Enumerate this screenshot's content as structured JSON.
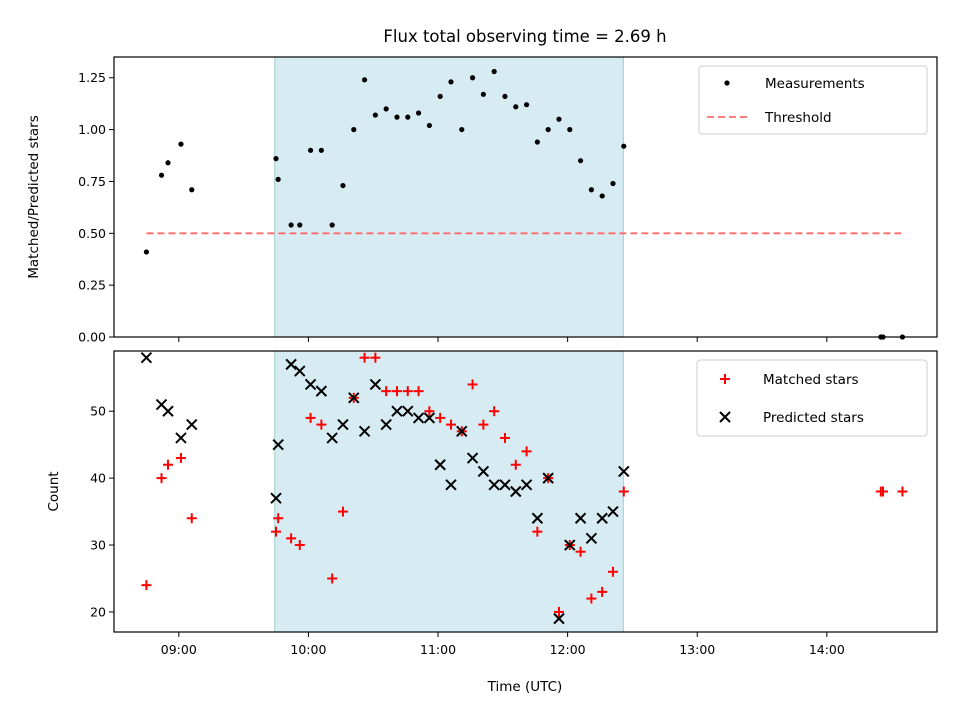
{
  "chart_data": {
    "title": "Flux total observing time = 2.69 h",
    "xlabel": "Time (UTC)",
    "x_tick_labels": [
      "09:00",
      "10:00",
      "11:00",
      "12:00",
      "13:00",
      "14:00"
    ],
    "x_tick_hours": [
      9,
      10,
      11,
      12,
      13,
      14
    ],
    "xlim_hours": [
      8.5,
      14.85
    ],
    "shaded_interval_hours": [
      9.74,
      12.43
    ],
    "shade_color": "#add8e6",
    "panels": [
      {
        "type": "scatter",
        "ylabel": "Matched/Predicted stars",
        "ylim": [
          0,
          1.35
        ],
        "yticks": [
          "0.00",
          "0.25",
          "0.50",
          "0.75",
          "1.00",
          "1.25"
        ],
        "legend_position": "upper right",
        "series": [
          {
            "name": "Measurements",
            "marker": "dot",
            "color": "#000000",
            "points": [
              [
                "08:45",
                0.41
              ],
              [
                "08:52",
                0.78
              ],
              [
                "08:55",
                0.84
              ],
              [
                "09:01",
                0.93
              ],
              [
                "09:06",
                0.71
              ],
              [
                "09:45",
                0.86
              ],
              [
                "09:46",
                0.76
              ],
              [
                "09:52",
                0.54
              ],
              [
                "09:56",
                0.54
              ],
              [
                "10:01",
                0.9
              ],
              [
                "10:06",
                0.9
              ],
              [
                "10:11",
                0.54
              ],
              [
                "10:16",
                0.73
              ],
              [
                "10:21",
                1.0
              ],
              [
                "10:26",
                1.24
              ],
              [
                "10:31",
                1.07
              ],
              [
                "10:36",
                1.1
              ],
              [
                "10:41",
                1.06
              ],
              [
                "10:46",
                1.06
              ],
              [
                "10:51",
                1.08
              ],
              [
                "10:56",
                1.02
              ],
              [
                "11:01",
                1.16
              ],
              [
                "11:06",
                1.23
              ],
              [
                "11:11",
                1.0
              ],
              [
                "11:16",
                1.25
              ],
              [
                "11:21",
                1.17
              ],
              [
                "11:26",
                1.28
              ],
              [
                "11:31",
                1.16
              ],
              [
                "11:36",
                1.11
              ],
              [
                "11:41",
                1.12
              ],
              [
                "11:46",
                0.94
              ],
              [
                "11:51",
                1.0
              ],
              [
                "11:56",
                1.05
              ],
              [
                "12:01",
                1.0
              ],
              [
                "12:06",
                0.85
              ],
              [
                "12:11",
                0.71
              ],
              [
                "12:16",
                0.68
              ],
              [
                "12:21",
                0.74
              ],
              [
                "12:26",
                0.92
              ],
              [
                "14:25",
                0.0
              ],
              [
                "14:26",
                0.0
              ],
              [
                "14:35",
                0.0
              ]
            ]
          },
          {
            "name": "Threshold",
            "style": "dashed-line",
            "color": "#ff6b6b",
            "points": [
              [
                "08:45",
                0.5
              ],
              [
                "14:35",
                0.5
              ]
            ]
          }
        ]
      },
      {
        "type": "scatter",
        "ylabel": "Count",
        "ylim": [
          17,
          59
        ],
        "yticks": [
          "20",
          "30",
          "40",
          "50"
        ],
        "legend_position": "upper right",
        "series": [
          {
            "name": "Matched stars",
            "marker": "plus",
            "color": "#ff0000",
            "points": [
              [
                "08:45",
                24
              ],
              [
                "08:52",
                40
              ],
              [
                "08:55",
                42
              ],
              [
                "09:01",
                43
              ],
              [
                "09:06",
                34
              ],
              [
                "09:45",
                32
              ],
              [
                "09:46",
                34
              ],
              [
                "09:52",
                31
              ],
              [
                "09:56",
                30
              ],
              [
                "10:01",
                49
              ],
              [
                "10:06",
                48
              ],
              [
                "10:11",
                25
              ],
              [
                "10:16",
                35
              ],
              [
                "10:21",
                52
              ],
              [
                "10:26",
                58
              ],
              [
                "10:31",
                58
              ],
              [
                "10:36",
                53
              ],
              [
                "10:41",
                53
              ],
              [
                "10:46",
                53
              ],
              [
                "10:51",
                53
              ],
              [
                "10:56",
                50
              ],
              [
                "11:01",
                49
              ],
              [
                "11:06",
                48
              ],
              [
                "11:11",
                47
              ],
              [
                "11:16",
                54
              ],
              [
                "11:21",
                48
              ],
              [
                "11:26",
                50
              ],
              [
                "11:31",
                46
              ],
              [
                "11:36",
                42
              ],
              [
                "11:41",
                44
              ],
              [
                "11:46",
                32
              ],
              [
                "11:51",
                40
              ],
              [
                "11:56",
                20
              ],
              [
                "12:01",
                30
              ],
              [
                "12:06",
                29
              ],
              [
                "12:11",
                22
              ],
              [
                "12:16",
                23
              ],
              [
                "12:21",
                26
              ],
              [
                "12:26",
                38
              ],
              [
                "14:25",
                38
              ],
              [
                "14:26",
                38
              ],
              [
                "14:35",
                38
              ]
            ]
          },
          {
            "name": "Predicted stars",
            "marker": "x",
            "color": "#000000",
            "points": [
              [
                "08:45",
                58
              ],
              [
                "08:52",
                51
              ],
              [
                "08:55",
                50
              ],
              [
                "09:01",
                46
              ],
              [
                "09:06",
                48
              ],
              [
                "09:45",
                37
              ],
              [
                "09:46",
                45
              ],
              [
                "09:52",
                57
              ],
              [
                "09:56",
                56
              ],
              [
                "10:01",
                54
              ],
              [
                "10:06",
                53
              ],
              [
                "10:11",
                46
              ],
              [
                "10:16",
                48
              ],
              [
                "10:21",
                52
              ],
              [
                "10:26",
                47
              ],
              [
                "10:31",
                54
              ],
              [
                "10:36",
                48
              ],
              [
                "10:41",
                50
              ],
              [
                "10:46",
                50
              ],
              [
                "10:51",
                49
              ],
              [
                "10:56",
                49
              ],
              [
                "11:01",
                42
              ],
              [
                "11:06",
                39
              ],
              [
                "11:11",
                47
              ],
              [
                "11:16",
                43
              ],
              [
                "11:21",
                41
              ],
              [
                "11:26",
                39
              ],
              [
                "11:31",
                39
              ],
              [
                "11:36",
                38
              ],
              [
                "11:41",
                39
              ],
              [
                "11:46",
                34
              ],
              [
                "11:51",
                40
              ],
              [
                "11:56",
                19
              ],
              [
                "12:01",
                30
              ],
              [
                "12:06",
                34
              ],
              [
                "12:11",
                31
              ],
              [
                "12:16",
                34
              ],
              [
                "12:21",
                35
              ],
              [
                "12:26",
                41
              ]
            ]
          }
        ]
      }
    ]
  }
}
